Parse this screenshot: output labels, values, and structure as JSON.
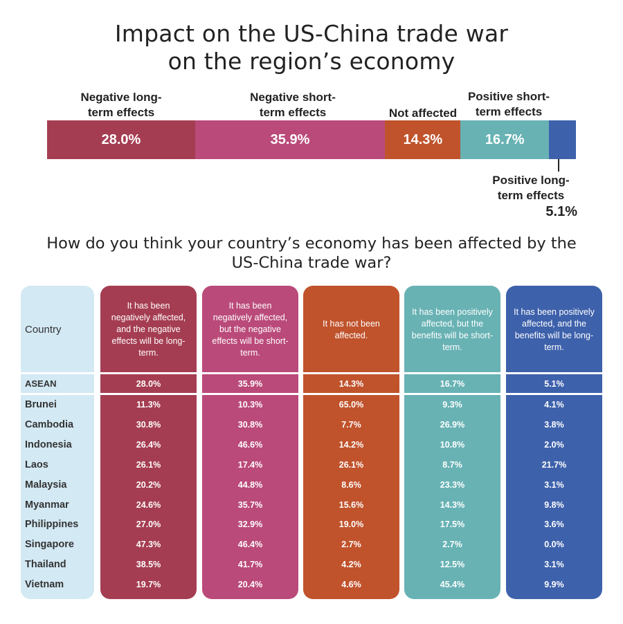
{
  "title": {
    "line1": "Impact on the US-China trade war",
    "line2": "on the region’s economy"
  },
  "chart_data": [
    {
      "type": "bar",
      "orientation": "horizontal-stacked",
      "title": "Impact on the US-China trade war on the region’s economy",
      "categories": [
        "Negative long-term effects",
        "Negative short-term effects",
        "Not affected",
        "Positive short-term effects",
        "Positive long-term effects"
      ],
      "label_lines": [
        [
          "Negative long-",
          "term effects"
        ],
        [
          "Negative short-",
          "term effects"
        ],
        [
          "Not affected"
        ],
        [
          "Positive short-",
          "term effects"
        ],
        [
          "Positive long-",
          "term effects"
        ]
      ],
      "values": [
        28.0,
        35.9,
        14.3,
        16.7,
        5.1
      ],
      "display_values": [
        "28.0%",
        "35.9%",
        "14.3%",
        "16.7%",
        "5.1%"
      ],
      "colors": [
        "#a53d52",
        "#ba4a7a",
        "#c0532c",
        "#68b2b4",
        "#3e61ab"
      ]
    },
    {
      "type": "table",
      "title": "How do you think your country’s economy has been affected by the US-China trade war?",
      "title_lines": [
        "How do you think your country’s economy has been affected by the",
        "US-China trade war?"
      ],
      "country_header": "Country",
      "columns": [
        {
          "header_lines": [
            "It has been",
            "negatively affected,",
            "and the negative",
            "effects will be long-",
            "term."
          ],
          "color": "#a53d52"
        },
        {
          "header_lines": [
            "It has been",
            "negatively affected,",
            "but the negative",
            "effects will be short-",
            "term."
          ],
          "color": "#ba4a7a"
        },
        {
          "header_lines": [
            "It has not been",
            "affected."
          ],
          "color": "#c0532c"
        },
        {
          "header_lines": [
            "It has been positively",
            "affected, but the",
            "benefits will be short-",
            "term."
          ],
          "color": "#68b2b4"
        },
        {
          "header_lines": [
            "It has been positively",
            "affected, and the",
            "benefits will be long-",
            "term."
          ],
          "color": "#3e61ab"
        }
      ],
      "country_col_color": "#d3e9f4",
      "summary": {
        "country": "ASEAN",
        "values": [
          "28.0%",
          "35.9%",
          "14.3%",
          "16.7%",
          "5.1%"
        ]
      },
      "rows": [
        {
          "country": "Brunei",
          "values": [
            "11.3%",
            "10.3%",
            "65.0%",
            "9.3%",
            "4.1%"
          ]
        },
        {
          "country": "Cambodia",
          "values": [
            "30.8%",
            "30.8%",
            "7.7%",
            "26.9%",
            "3.8%"
          ]
        },
        {
          "country": "Indonesia",
          "values": [
            "26.4%",
            "46.6%",
            "14.2%",
            "10.8%",
            "2.0%"
          ]
        },
        {
          "country": "Laos",
          "values": [
            "26.1%",
            "17.4%",
            "26.1%",
            "8.7%",
            "21.7%"
          ]
        },
        {
          "country": "Malaysia",
          "values": [
            "20.2%",
            "44.8%",
            "8.6%",
            "23.3%",
            "3.1%"
          ]
        },
        {
          "country": "Myanmar",
          "values": [
            "24.6%",
            "35.7%",
            "15.6%",
            "14.3%",
            "9.8%"
          ]
        },
        {
          "country": "Philippines",
          "values": [
            "27.0%",
            "32.9%",
            "19.0%",
            "17.5%",
            "3.6%"
          ]
        },
        {
          "country": "Singapore",
          "values": [
            "47.3%",
            "46.4%",
            "2.7%",
            "2.7%",
            "0.0%"
          ]
        },
        {
          "country": "Thailand",
          "values": [
            "38.5%",
            "41.7%",
            "4.2%",
            "12.5%",
            "3.1%"
          ]
        },
        {
          "country": "Vietnam",
          "values": [
            "19.7%",
            "20.4%",
            "4.6%",
            "45.4%",
            "9.9%"
          ]
        }
      ]
    }
  ]
}
